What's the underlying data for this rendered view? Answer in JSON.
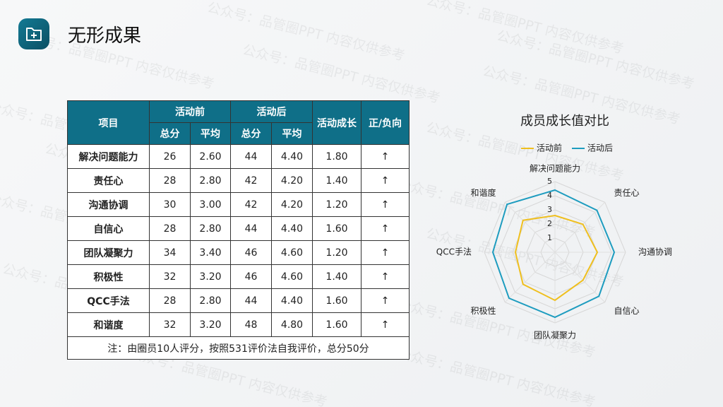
{
  "header": {
    "title": "无形成果"
  },
  "watermark": "公众号：品管圈PPT  内容仅供参考",
  "table": {
    "head": [
      "项目",
      "活动前",
      "活动后",
      "活动成长",
      "正/负向"
    ],
    "subhead": [
      "总分",
      "平均",
      "总分",
      "平均"
    ],
    "rows": [
      [
        "解决问题能力",
        "26",
        "2.60",
        "44",
        "4.40",
        "1.80",
        "↑"
      ],
      [
        "责任心",
        "28",
        "2.80",
        "42",
        "4.20",
        "1.40",
        "↑"
      ],
      [
        "沟通协调",
        "30",
        "3.00",
        "42",
        "4.20",
        "1.20",
        "↑"
      ],
      [
        "自信心",
        "28",
        "2.80",
        "44",
        "4.40",
        "1.60",
        "↑"
      ],
      [
        "团队凝聚力",
        "34",
        "3.40",
        "46",
        "4.60",
        "1.20",
        "↑"
      ],
      [
        "积极性",
        "32",
        "3.20",
        "46",
        "4.60",
        "1.40",
        "↑"
      ],
      [
        "QCC手法",
        "28",
        "2.80",
        "44",
        "4.40",
        "1.60",
        "↑"
      ],
      [
        "和谐度",
        "32",
        "3.20",
        "48",
        "4.80",
        "1.60",
        "↑"
      ]
    ],
    "note": "注：由圈员10人评分，按照531评价法自我评价，总分50分"
  },
  "chart_data": {
    "type": "radar",
    "title": "成员成长值对比",
    "categories": [
      "解决问题能力",
      "责任心",
      "沟通协调",
      "自信心",
      "团队凝聚力",
      "积极性",
      "QCC手法",
      "和谐度"
    ],
    "series": [
      {
        "name": "活动前",
        "color": "#efbf1e",
        "values": [
          2.6,
          2.8,
          3.0,
          2.8,
          3.4,
          3.2,
          2.8,
          3.2
        ]
      },
      {
        "name": "活动后",
        "color": "#1d9cbf",
        "values": [
          4.4,
          4.2,
          4.2,
          4.4,
          4.6,
          4.6,
          4.4,
          4.8
        ]
      }
    ],
    "rlim": [
      0,
      5
    ],
    "rticks": [
      1,
      2,
      3,
      4,
      5
    ],
    "grid": true,
    "legend": "top"
  }
}
